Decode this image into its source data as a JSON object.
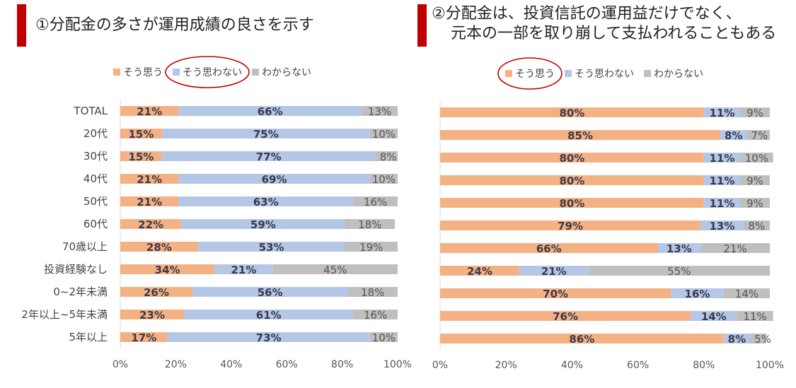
{
  "colors": {
    "accent": "#c00000",
    "so_omou": "#f4b183",
    "so_omowanai": "#b4c7e7",
    "wakaranai": "#bfbfbf",
    "circle": "#c00000"
  },
  "chart_data": [
    {
      "type": "bar",
      "orientation": "horizontal",
      "stacked": "100%",
      "title": "①分配金の多さが運用成績の良さを示す",
      "legend_position": "top",
      "legend_highlight": "そう思わない",
      "xlim": [
        0,
        100
      ],
      "x_ticks": [
        "0%",
        "20%",
        "40%",
        "60%",
        "80%",
        "100%"
      ],
      "categories": [
        "TOTAL",
        "20代",
        "30代",
        "40代",
        "50代",
        "60代",
        "70歳以上",
        "投資経験なし",
        "0~2年未満",
        "2年以上~5年未満",
        "5年以上"
      ],
      "series": [
        {
          "name": "そう思う",
          "values": [
            21,
            15,
            15,
            21,
            21,
            22,
            28,
            34,
            26,
            23,
            17
          ]
        },
        {
          "name": "そう思わない",
          "values": [
            66,
            75,
            77,
            69,
            63,
            59,
            53,
            21,
            56,
            61,
            73
          ]
        },
        {
          "name": "わからない",
          "values": [
            13,
            10,
            8,
            10,
            16,
            18,
            19,
            45,
            18,
            16,
            10
          ]
        }
      ]
    },
    {
      "type": "bar",
      "orientation": "horizontal",
      "stacked": "100%",
      "title_lines": [
        "②分配金は、投資信託の運用益だけでなく、",
        "元本の一部を取り崩して支払われることもある"
      ],
      "legend_position": "top",
      "legend_highlight": "そう思う",
      "xlim": [
        0,
        100
      ],
      "x_ticks": [
        "0%",
        "20%",
        "40%",
        "60%",
        "80%",
        "100%"
      ],
      "series": [
        {
          "name": "そう思う",
          "values": [
            80,
            85,
            80,
            80,
            80,
            79,
            66,
            24,
            70,
            76,
            86
          ]
        },
        {
          "name": "そう思わない",
          "values": [
            11,
            8,
            11,
            11,
            11,
            13,
            13,
            21,
            16,
            14,
            8
          ]
        },
        {
          "name": "わからない",
          "values": [
            9,
            7,
            10,
            9,
            9,
            8,
            21,
            55,
            14,
            11,
            5
          ]
        }
      ]
    }
  ]
}
